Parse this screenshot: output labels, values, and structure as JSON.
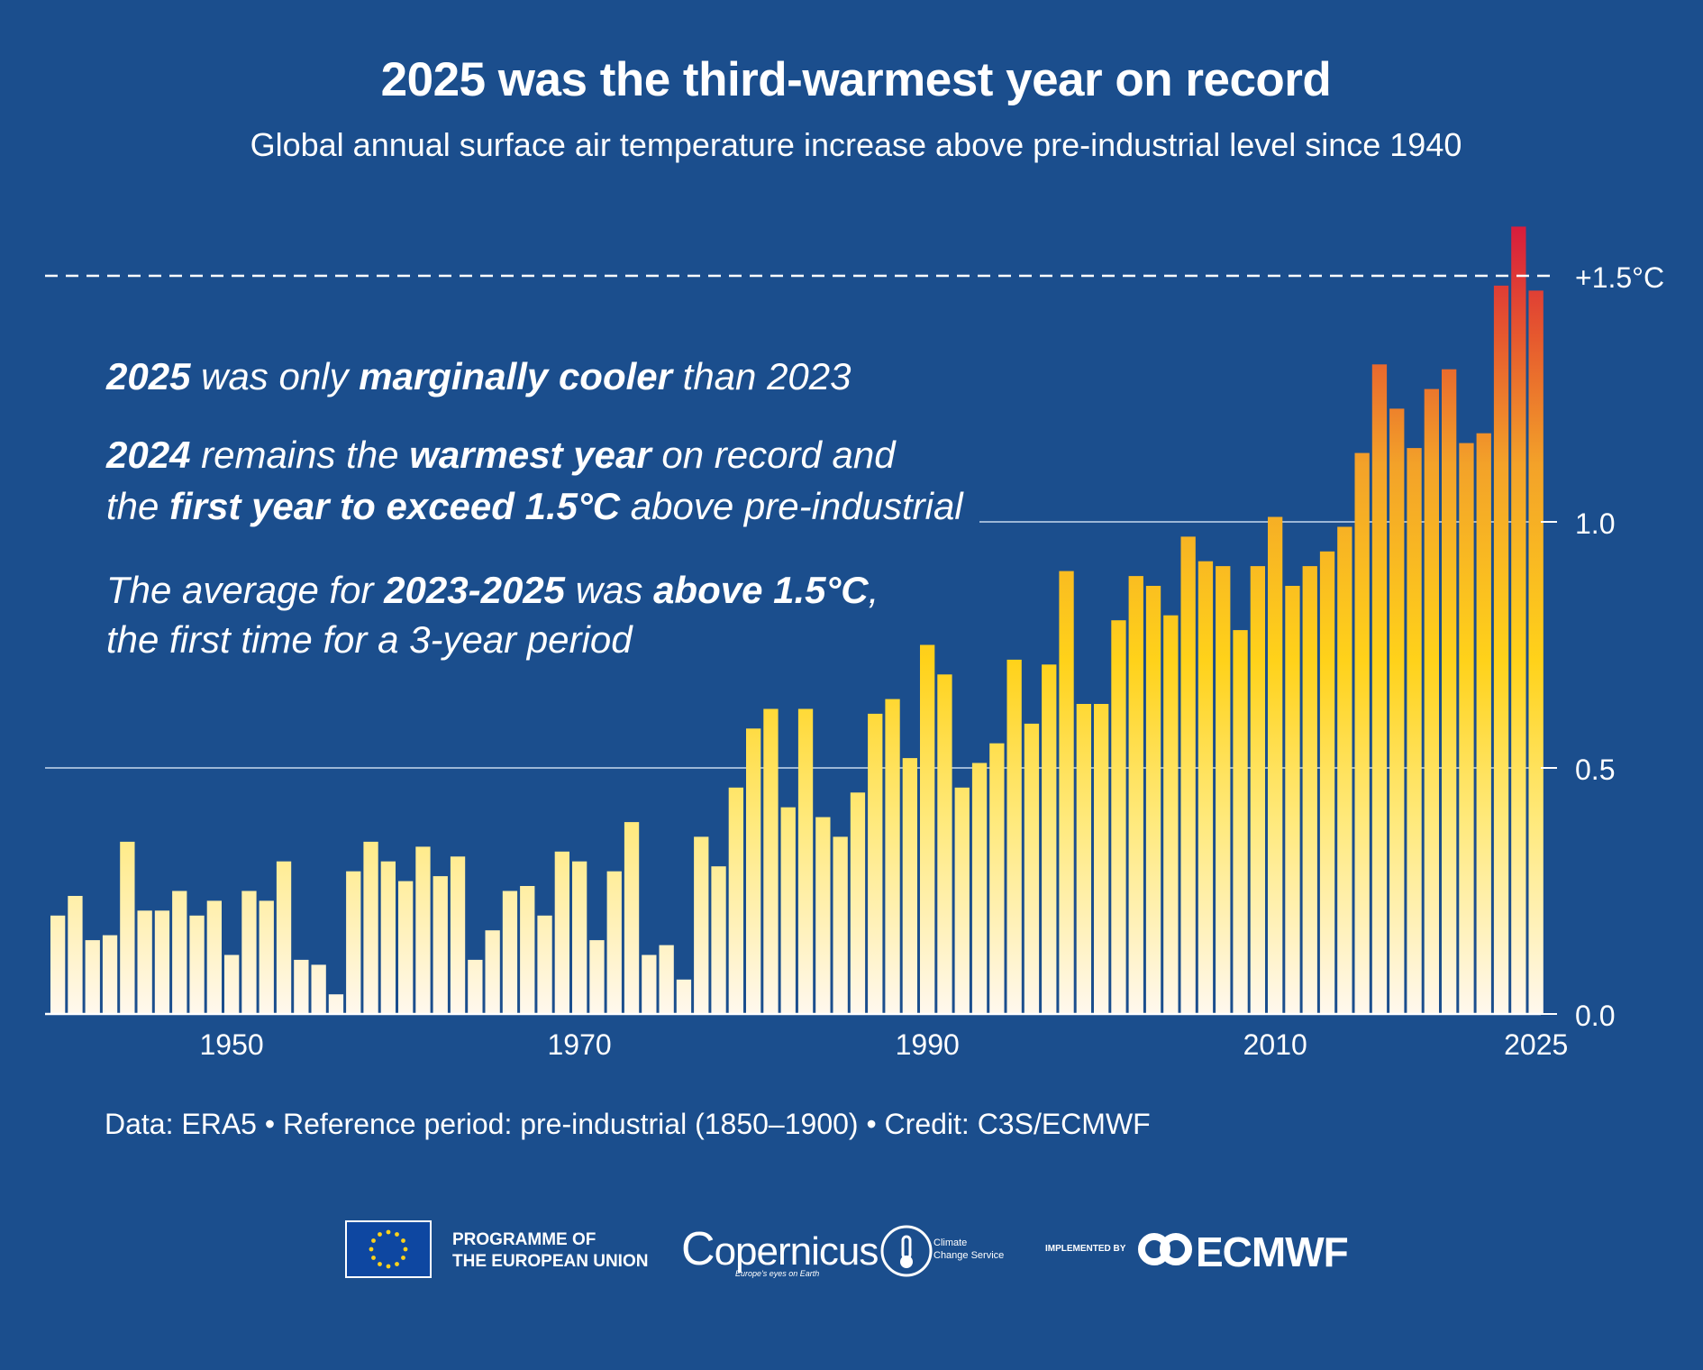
{
  "title": "2025 was the third-warmest year on record",
  "subtitle": "Global annual surface air temperature increase above pre-industrial level since 1940",
  "annotations": {
    "line1": {
      "a": "2025",
      "b": " was only ",
      "c": "marginally cooler",
      "d": " than 2023"
    },
    "line2": {
      "a": "2024",
      "b": " remains the ",
      "c": "warmest year",
      "d": " on record and"
    },
    "line3": {
      "a": "the ",
      "b": "first year to exceed 1.5°C",
      "c": " above pre-industrial"
    },
    "line4": {
      "a": "The average for ",
      "b": "2023-2025",
      "c": " was ",
      "d": "above 1.5°C",
      "e": ","
    },
    "line5": {
      "a": "the first time for a 3-year period"
    }
  },
  "footer": "Data: ERA5 • Reference period: pre-industrial (1850–1900) • Credit: C3S/ECMWF",
  "logos": {
    "eu_line1": "PROGRAMME OF",
    "eu_line2": "THE EUROPEAN UNION",
    "copernicus": "opernicus",
    "copernicus_tagline": "Europe's eyes on Earth",
    "c3s_line1": "Climate",
    "c3s_line2": "Change Service",
    "implemented_by": "IMPLEMENTED BY",
    "ecmwf": "ECMWF"
  },
  "colors": {
    "background": "#1b4e8d",
    "bar_low": "#fff8ee",
    "bar_mid": "#ffd21a",
    "bar_high": "#f08a20",
    "bar_top": "#d81e3c",
    "gridline": "#c8d8ef"
  },
  "chart_data": {
    "type": "bar",
    "x": [
      1940,
      1941,
      1942,
      1943,
      1944,
      1945,
      1946,
      1947,
      1948,
      1949,
      1950,
      1951,
      1952,
      1953,
      1954,
      1955,
      1956,
      1957,
      1958,
      1959,
      1960,
      1961,
      1962,
      1963,
      1964,
      1965,
      1966,
      1967,
      1968,
      1969,
      1970,
      1971,
      1972,
      1973,
      1974,
      1975,
      1976,
      1977,
      1978,
      1979,
      1980,
      1981,
      1982,
      1983,
      1984,
      1985,
      1986,
      1987,
      1988,
      1989,
      1990,
      1991,
      1992,
      1993,
      1994,
      1995,
      1996,
      1997,
      1998,
      1999,
      2000,
      2001,
      2002,
      2003,
      2004,
      2005,
      2006,
      2007,
      2008,
      2009,
      2010,
      2011,
      2012,
      2013,
      2014,
      2015,
      2016,
      2017,
      2018,
      2019,
      2020,
      2021,
      2022,
      2023,
      2024,
      2025
    ],
    "values": [
      0.2,
      0.24,
      0.15,
      0.16,
      0.35,
      0.21,
      0.21,
      0.25,
      0.2,
      0.23,
      0.12,
      0.25,
      0.23,
      0.31,
      0.11,
      0.1,
      0.04,
      0.29,
      0.35,
      0.31,
      0.27,
      0.34,
      0.28,
      0.32,
      0.11,
      0.17,
      0.25,
      0.26,
      0.2,
      0.33,
      0.31,
      0.15,
      0.29,
      0.39,
      0.12,
      0.14,
      0.07,
      0.36,
      0.3,
      0.46,
      0.58,
      0.62,
      0.42,
      0.62,
      0.4,
      0.36,
      0.45,
      0.61,
      0.64,
      0.52,
      0.75,
      0.69,
      0.46,
      0.51,
      0.55,
      0.72,
      0.59,
      0.71,
      0.9,
      0.63,
      0.63,
      0.8,
      0.89,
      0.87,
      0.81,
      0.97,
      0.92,
      0.91,
      0.78,
      0.91,
      1.01,
      0.87,
      0.91,
      0.94,
      0.99,
      1.14,
      1.32,
      1.23,
      1.15,
      1.27,
      1.31,
      1.16,
      1.18,
      1.48,
      1.6,
      1.47
    ],
    "title": "2025 was the third-warmest year on record",
    "subtitle": "Global annual surface air temperature increase above pre-industrial level since 1940",
    "xlabel": "",
    "ylabel": "",
    "xticks": [
      1950,
      1970,
      1990,
      2010,
      2025
    ],
    "yticks": [
      0.0,
      0.5,
      1.0
    ],
    "ytick_labels": [
      "0.0",
      "0.5",
      "1.0"
    ],
    "ylim": [
      0,
      1.6
    ],
    "reference_line": {
      "value": 1.5,
      "label": "+1.5°C",
      "style": "dashed"
    },
    "grid": "horizontal at 0.5 and 1.0",
    "legend": "none"
  }
}
